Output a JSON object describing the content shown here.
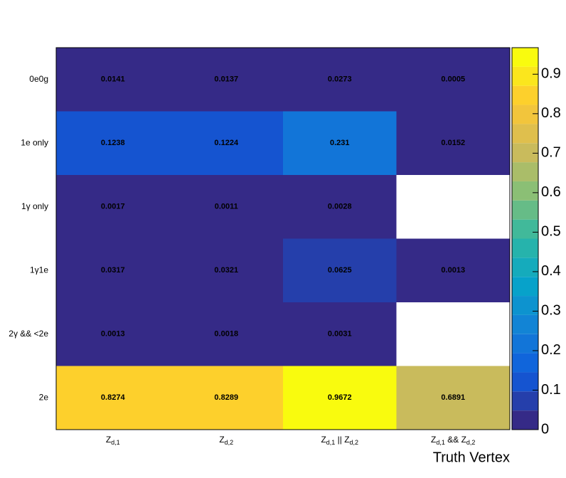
{
  "chart_data": {
    "type": "heatmap",
    "x_label": "Truth Vertex",
    "x_categories": [
      "Zd,1",
      "Zd,2",
      "Zd,1 || Zd,2",
      "Zd,1 && Zd,2"
    ],
    "y_categories": [
      "0e0g",
      "1e only",
      "1γ only",
      "1γ1e",
      "2γ && <2e",
      "2e"
    ],
    "values": [
      [
        0.0141,
        0.0137,
        0.0273,
        0.0005
      ],
      [
        0.1238,
        0.1224,
        0.231,
        0.0152
      ],
      [
        0.0017,
        0.0011,
        0.0028,
        null
      ],
      [
        0.0317,
        0.0321,
        0.0625,
        0.0013
      ],
      [
        0.0013,
        0.0018,
        0.0031,
        null
      ],
      [
        0.8274,
        0.8289,
        0.9672,
        0.6891
      ]
    ],
    "colormap": "bird",
    "zlim": [
      0,
      0.9672
    ],
    "zticks": [
      0,
      0.1,
      0.2,
      0.3,
      0.4,
      0.5,
      0.6,
      0.7,
      0.8,
      0.9
    ]
  }
}
